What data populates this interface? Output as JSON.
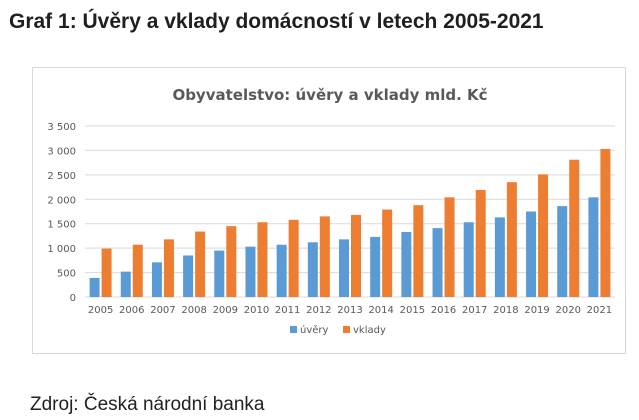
{
  "page": {
    "title": "Graf 1: Úvěry a vklady domácností v letech 2005-2021",
    "source": "Zdroj: Česká národní banka"
  },
  "colors": {
    "uvery": "#5b9bd5",
    "vklady": "#ed7d31",
    "grid": "#d9d9d9",
    "chart_title": "#595959",
    "tick_text": "#595959"
  },
  "chart_data": {
    "type": "bar",
    "title": "Obyvatelstvo: úvěry a vklady mld. Kč",
    "xlabel": "",
    "ylabel": "",
    "ylim": [
      0,
      3500
    ],
    "yticks": [
      0,
      500,
      1000,
      1500,
      2000,
      2500,
      3000,
      3500
    ],
    "ytick_labels": [
      "0",
      "500",
      "1 000",
      "1 500",
      "2 000",
      "2 500",
      "3 000",
      "3 500"
    ],
    "categories": [
      "2005",
      "2006",
      "2007",
      "2008",
      "2009",
      "2010",
      "2011",
      "2012",
      "2013",
      "2014",
      "2015",
      "2016",
      "2017",
      "2018",
      "2019",
      "2020",
      "2021"
    ],
    "series": [
      {
        "name": "úvěry",
        "values": [
          390,
          520,
          710,
          850,
          950,
          1030,
          1070,
          1120,
          1180,
          1230,
          1330,
          1410,
          1530,
          1630,
          1750,
          1860,
          2040
        ]
      },
      {
        "name": "vklady",
        "values": [
          990,
          1070,
          1180,
          1340,
          1450,
          1530,
          1580,
          1650,
          1680,
          1790,
          1880,
          2040,
          2190,
          2350,
          2510,
          2810,
          3030
        ]
      }
    ],
    "grid": true,
    "legend": "bottom"
  }
}
